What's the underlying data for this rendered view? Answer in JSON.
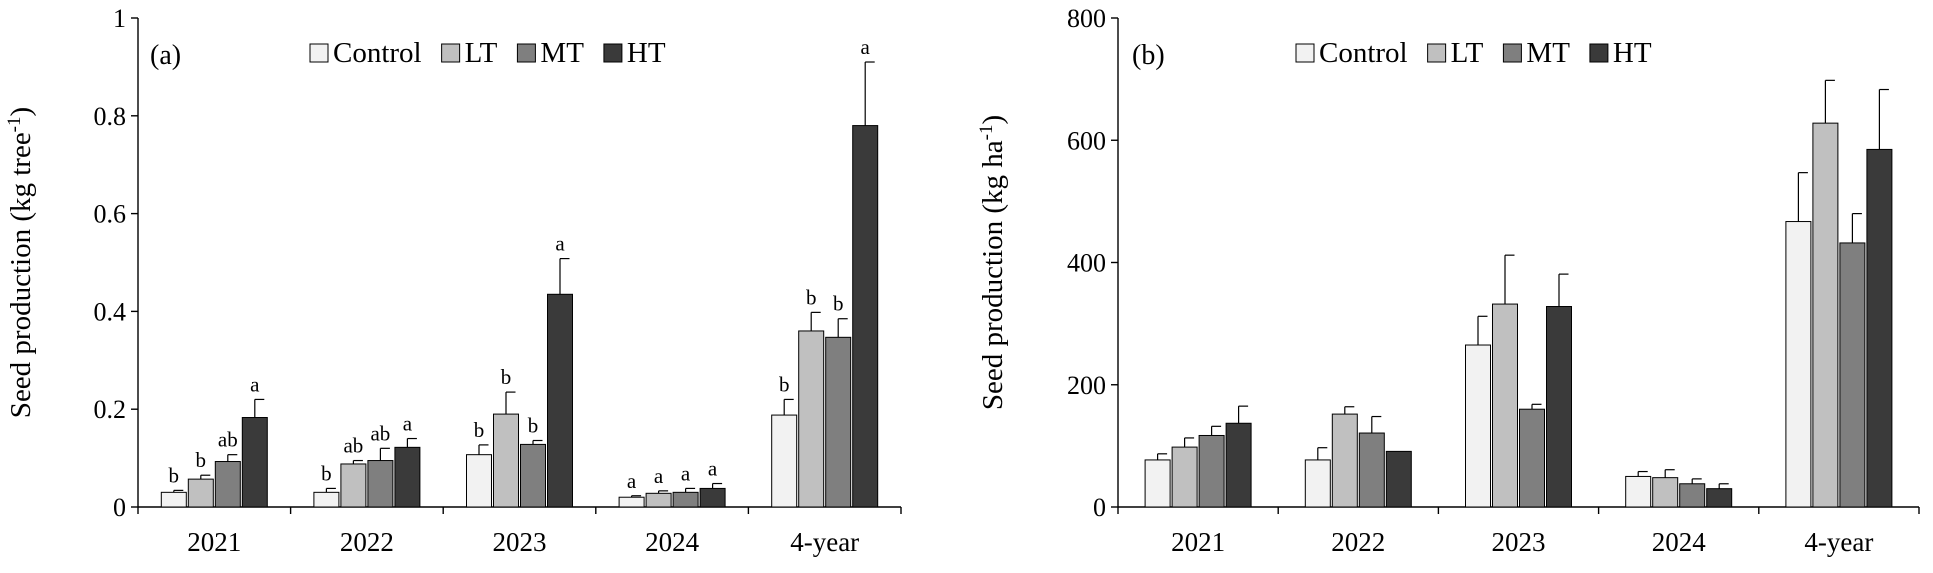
{
  "chart_data": [
    {
      "type": "bar",
      "panel_label": "(a)",
      "ylabel_main": "Seed production (kg tree",
      "ylabel_sup": "-1",
      "ylabel_close": ")",
      "ylim": [
        0,
        1
      ],
      "yticks": [
        "0",
        "0.2",
        "0.4",
        "0.6",
        "0.8",
        "1"
      ],
      "ytick_values": [
        0,
        0.2,
        0.4,
        0.6,
        0.8,
        1
      ],
      "categories": [
        "2021",
        "2022",
        "2023",
        "2024",
        "4-year"
      ],
      "grid": false,
      "legend_position": "top",
      "series": [
        {
          "name": "Control",
          "values": [
            0.03,
            0.03,
            0.107,
            0.02,
            0.188
          ],
          "errors": [
            0.004,
            0.008,
            0.02,
            0.003,
            0.032
          ],
          "letters": [
            "b",
            "b",
            "b",
            "a",
            "b"
          ]
        },
        {
          "name": "LT",
          "values": [
            0.057,
            0.088,
            0.19,
            0.028,
            0.36
          ],
          "errors": [
            0.008,
            0.007,
            0.045,
            0.005,
            0.038
          ],
          "letters": [
            "b",
            "ab",
            "b",
            "a",
            "b"
          ]
        },
        {
          "name": "MT",
          "values": [
            0.093,
            0.095,
            0.128,
            0.03,
            0.347
          ],
          "errors": [
            0.014,
            0.025,
            0.008,
            0.008,
            0.038
          ],
          "letters": [
            "ab",
            "ab",
            "b",
            "a",
            "b"
          ]
        },
        {
          "name": "HT",
          "values": [
            0.183,
            0.122,
            0.435,
            0.038,
            0.78
          ],
          "errors": [
            0.037,
            0.018,
            0.073,
            0.01,
            0.13
          ],
          "letters": [
            "a",
            "a",
            "a",
            "a",
            "a"
          ]
        }
      ]
    },
    {
      "type": "bar",
      "panel_label": "(b)",
      "ylabel_main": "Seed production (kg ha",
      "ylabel_sup": "-1",
      "ylabel_close": ")",
      "ylim": [
        0,
        800
      ],
      "yticks": [
        "0",
        "200",
        "400",
        "600",
        "800"
      ],
      "ytick_values": [
        0,
        200,
        400,
        600,
        800
      ],
      "categories": [
        "2021",
        "2022",
        "2023",
        "2024",
        "4-year"
      ],
      "grid": false,
      "legend_position": "top",
      "series": [
        {
          "name": "Control",
          "values": [
            77,
            77,
            265,
            50,
            467
          ],
          "errors": [
            10,
            20,
            47,
            8,
            80
          ],
          "letters": []
        },
        {
          "name": "LT",
          "values": [
            98,
            152,
            332,
            48,
            628
          ],
          "errors": [
            15,
            12,
            80,
            13,
            70
          ],
          "letters": []
        },
        {
          "name": "MT",
          "values": [
            117,
            121,
            160,
            38,
            432
          ],
          "errors": [
            15,
            27,
            8,
            8,
            48
          ],
          "letters": []
        },
        {
          "name": "HT",
          "values": [
            137,
            91,
            328,
            30,
            585
          ],
          "errors": [
            28,
            0,
            53,
            8,
            98
          ],
          "letters": []
        }
      ]
    }
  ],
  "colors": {
    "Control": "#f2f2f2",
    "LT": "#c0c0c0",
    "MT": "#7f7f7f",
    "HT": "#3a3a3a",
    "axis": "#000000"
  }
}
